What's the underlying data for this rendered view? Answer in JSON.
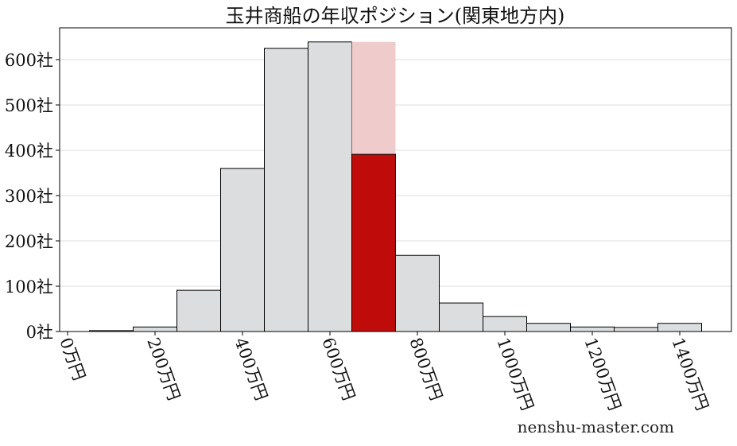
{
  "chart_data": {
    "type": "bar",
    "title": "玉井商船の年収ポジション(関東地方内)",
    "xlabel": "",
    "ylabel": "",
    "bin_width": 100,
    "bins_start": [
      50,
      150,
      250,
      350,
      450,
      550,
      650,
      750,
      850,
      950,
      1050,
      1150,
      1250,
      1350
    ],
    "values": [
      2,
      10,
      91,
      360,
      625,
      639,
      391,
      168,
      63,
      33,
      18,
      10,
      9,
      18
    ],
    "highlight": {
      "bin_start": 650,
      "value": 391,
      "background_value": 639,
      "color": "#c00b0b",
      "background_color": "#f0cbcb"
    },
    "bar_color": "#dcdddf",
    "xlim": [
      -20,
      1520
    ],
    "ylim": [
      0,
      670
    ],
    "xticks": [
      0,
      200,
      400,
      600,
      800,
      1000,
      1200,
      1400
    ],
    "xtick_labels": [
      "0万円",
      "200万円",
      "400万円",
      "600万円",
      "800万円",
      "1000万円",
      "1200万円",
      "1400万円"
    ],
    "yticks": [
      0,
      100,
      200,
      300,
      400,
      500,
      600
    ],
    "ytick_labels": [
      "0社",
      "100社",
      "200社",
      "300社",
      "400社",
      "500社",
      "600社"
    ],
    "grid": "horizontal"
  },
  "watermark": "nenshu-master.com"
}
